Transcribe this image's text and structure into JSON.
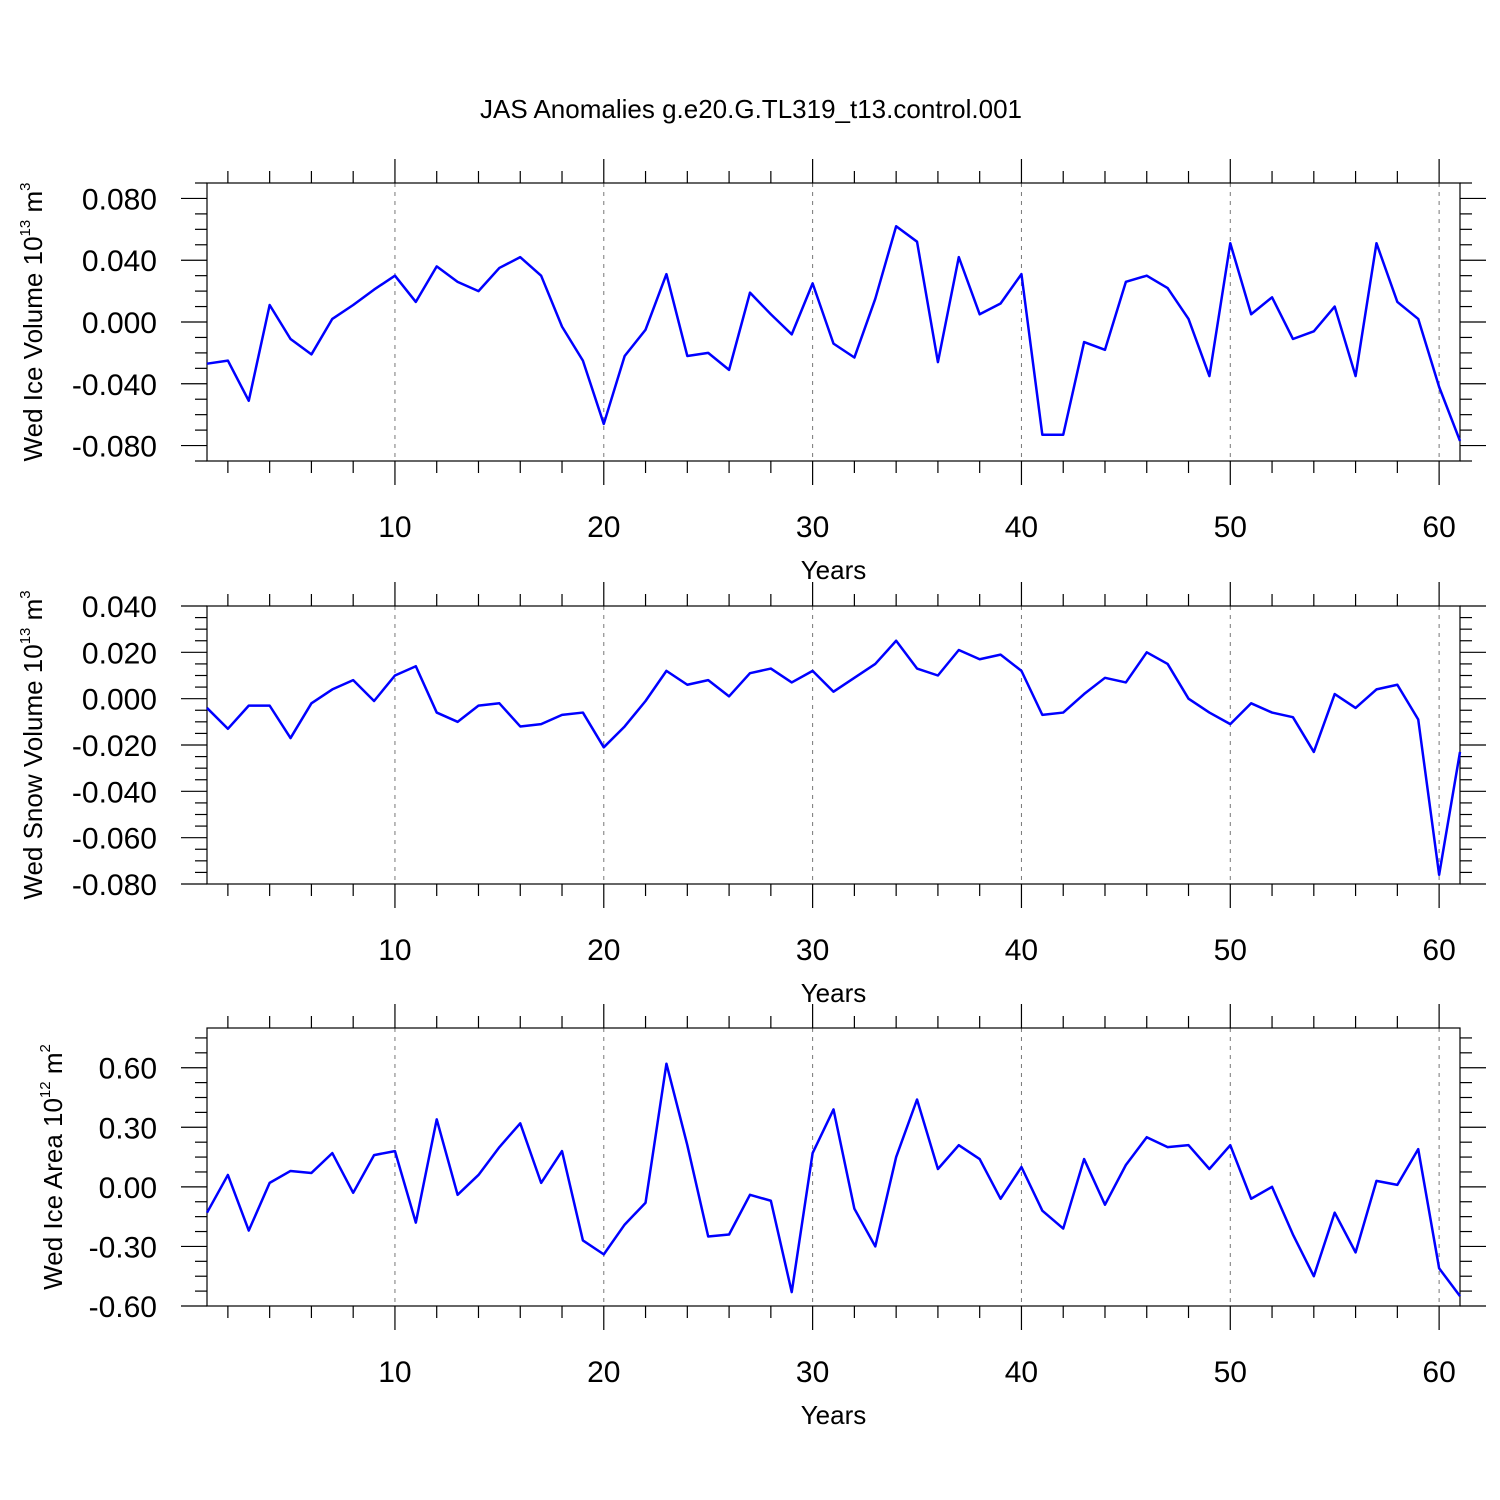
{
  "title": "JAS Anomalies g.e20.G.TL319_t13.control.001",
  "chart_data": [
    {
      "type": "line",
      "name": "ice-volume",
      "title": "JAS Anomalies g.e20.G.TL319_t13.control.001",
      "ylabel_main": "Wed Ice Volume 10",
      "ylabel_exp": "13",
      "ylabel_unit": " m",
      "ylabel_unit_exp": "3",
      "xlabel": "Years",
      "xlim": [
        1,
        61
      ],
      "ylim": [
        -0.09,
        0.09
      ],
      "xticks": [
        10,
        20,
        30,
        40,
        50,
        60
      ],
      "yticks": [
        -0.08,
        -0.04,
        0.0,
        0.04,
        0.08
      ],
      "ytick_labels": [
        "-0.080",
        "-0.040",
        "0.000",
        "0.040",
        "0.080"
      ],
      "grid": "vertical dashed at x ticks",
      "series": [
        {
          "name": "Wed Ice Volume",
          "color": "#0000ff",
          "values": [
            -0.027,
            -0.025,
            -0.051,
            0.011,
            -0.011,
            -0.021,
            0.002,
            0.011,
            0.021,
            0.03,
            0.013,
            0.036,
            0.026,
            0.02,
            0.035,
            0.042,
            0.03,
            -0.003,
            -0.025,
            -0.066,
            -0.022,
            -0.005,
            0.031,
            -0.022,
            -0.02,
            -0.031,
            0.019,
            0.005,
            -0.008,
            0.025,
            -0.014,
            -0.023,
            0.015,
            0.062,
            0.052,
            -0.026,
            0.042,
            0.005,
            0.012,
            0.031,
            -0.073,
            -0.073,
            -0.013,
            -0.018,
            0.026,
            0.03,
            0.022,
            0.002,
            -0.035,
            0.051,
            0.005,
            0.016,
            -0.011,
            -0.006,
            0.01,
            -0.035,
            0.051,
            0.013,
            0.002,
            -0.042,
            -0.077
          ]
        }
      ]
    },
    {
      "type": "line",
      "name": "snow-volume",
      "ylabel_main": "Wed Snow Volume 10",
      "ylabel_exp": "13",
      "ylabel_unit": " m",
      "ylabel_unit_exp": "3",
      "xlabel": "Years",
      "xlim": [
        1,
        61
      ],
      "ylim": [
        -0.08,
        0.04
      ],
      "xticks": [
        10,
        20,
        30,
        40,
        50,
        60
      ],
      "yticks": [
        -0.08,
        -0.06,
        -0.04,
        -0.02,
        0.0,
        0.02,
        0.04
      ],
      "ytick_labels": [
        "-0.080",
        "-0.060",
        "-0.040",
        "-0.020",
        "0.000",
        "0.020",
        "0.040"
      ],
      "grid": "vertical dashed at x ticks",
      "series": [
        {
          "name": "Wed Snow Volume",
          "color": "#0000ff",
          "values": [
            -0.004,
            -0.013,
            -0.003,
            -0.003,
            -0.017,
            -0.002,
            0.004,
            0.008,
            -0.001,
            0.01,
            0.014,
            -0.006,
            -0.01,
            -0.003,
            -0.002,
            -0.012,
            -0.011,
            -0.007,
            -0.006,
            -0.021,
            -0.012,
            -0.001,
            0.012,
            0.006,
            0.008,
            0.001,
            0.011,
            0.013,
            0.007,
            0.012,
            0.003,
            0.009,
            0.015,
            0.025,
            0.013,
            0.01,
            0.021,
            0.017,
            0.019,
            0.012,
            -0.007,
            -0.006,
            0.002,
            0.009,
            0.007,
            0.02,
            0.015,
            0.0,
            -0.006,
            -0.011,
            -0.002,
            -0.006,
            -0.008,
            -0.023,
            0.002,
            -0.004,
            0.004,
            0.006,
            -0.009,
            -0.076,
            -0.023
          ]
        }
      ]
    },
    {
      "type": "line",
      "name": "ice-area",
      "ylabel_main": "Wed Ice Area 10",
      "ylabel_exp": "12",
      "ylabel_unit": " m",
      "ylabel_unit_exp": "2",
      "xlabel": "Years",
      "xlim": [
        1,
        61
      ],
      "ylim": [
        -0.6,
        0.8
      ],
      "xticks": [
        10,
        20,
        30,
        40,
        50,
        60
      ],
      "yticks": [
        -0.6,
        -0.3,
        0.0,
        0.3,
        0.6
      ],
      "ytick_labels": [
        "-0.60",
        "-0.30",
        "0.00",
        "0.30",
        "0.60"
      ],
      "grid": "vertical dashed at x ticks",
      "series": [
        {
          "name": "Wed Ice Area",
          "color": "#0000ff",
          "values": [
            -0.13,
            0.06,
            -0.22,
            0.02,
            0.08,
            0.07,
            0.17,
            -0.03,
            0.16,
            0.18,
            -0.18,
            0.34,
            -0.04,
            0.06,
            0.2,
            0.32,
            0.02,
            0.18,
            -0.27,
            -0.34,
            -0.19,
            -0.08,
            0.62,
            0.21,
            -0.25,
            -0.24,
            -0.04,
            -0.07,
            -0.53,
            0.17,
            0.39,
            -0.11,
            -0.3,
            0.15,
            0.44,
            0.09,
            0.21,
            0.14,
            -0.06,
            0.1,
            -0.12,
            -0.21,
            0.14,
            -0.09,
            0.11,
            0.25,
            0.2,
            0.21,
            0.09,
            0.21,
            -0.06,
            0.0,
            -0.24,
            -0.45,
            -0.13,
            -0.33,
            0.03,
            0.01,
            0.19,
            -0.41,
            -0.55
          ]
        }
      ]
    }
  ]
}
